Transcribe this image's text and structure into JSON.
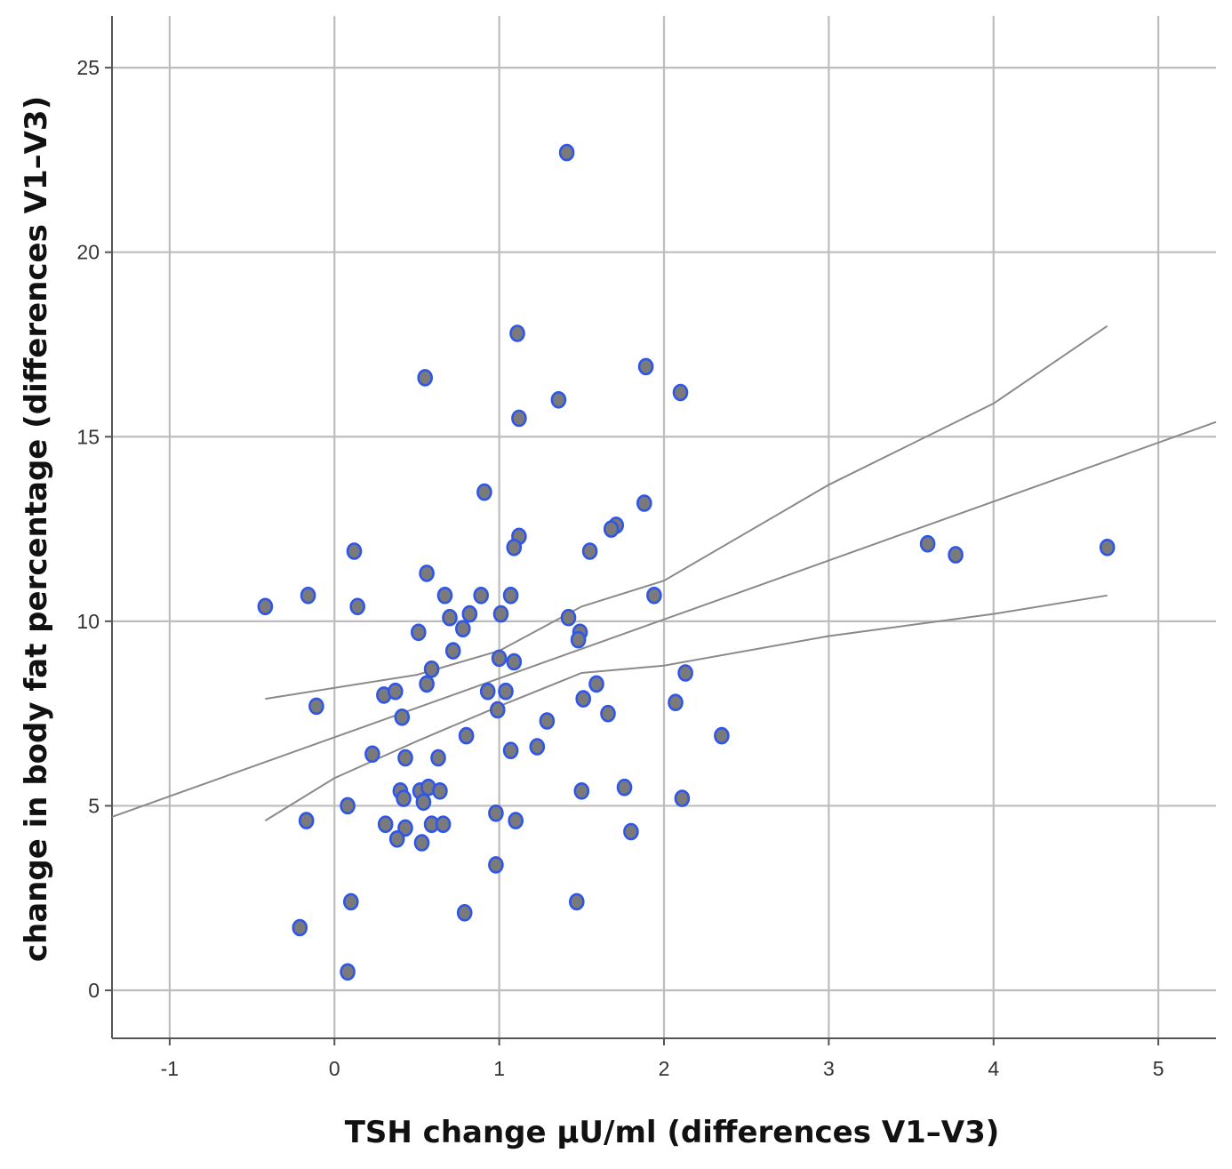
{
  "chart_data": {
    "type": "scatter",
    "title": "",
    "xlabel": "TSH change µU/ml (differences V1–V3)",
    "ylabel": "change in body fat percentage (differences V1–V3)",
    "xlim": [
      -1.35,
      5.35
    ],
    "ylim": [
      -1.3,
      26.4
    ],
    "x_ticks": [
      -1,
      0,
      1,
      2,
      3,
      4,
      5
    ],
    "x_tick_labels": [
      "-1",
      "0",
      "1",
      "2",
      "3",
      "4",
      "5"
    ],
    "y_ticks": [
      0,
      5,
      10,
      15,
      20,
      25
    ],
    "y_tick_labels": [
      "0",
      "5",
      "10",
      "15",
      "20",
      "25"
    ],
    "grid": true,
    "colors": {
      "point_fill": "#7a7a7a",
      "point_edge": "#2f56e8",
      "fit_line": "#8a8a8a",
      "grid": "#bdbdbd"
    },
    "points": [
      {
        "x": 1.41,
        "y": 22.7
      },
      {
        "x": 1.11,
        "y": 17.8
      },
      {
        "x": 0.55,
        "y": 16.6
      },
      {
        "x": 1.89,
        "y": 16.9
      },
      {
        "x": 2.1,
        "y": 16.2
      },
      {
        "x": 1.36,
        "y": 16.0
      },
      {
        "x": 1.12,
        "y": 15.5
      },
      {
        "x": 0.91,
        "y": 13.5
      },
      {
        "x": 1.88,
        "y": 13.2
      },
      {
        "x": 1.71,
        "y": 12.6
      },
      {
        "x": 1.68,
        "y": 12.5
      },
      {
        "x": 1.12,
        "y": 12.3
      },
      {
        "x": 1.09,
        "y": 12.0
      },
      {
        "x": 3.6,
        "y": 12.1
      },
      {
        "x": 3.77,
        "y": 11.8
      },
      {
        "x": 4.69,
        "y": 12.0
      },
      {
        "x": 1.55,
        "y": 11.9
      },
      {
        "x": 0.12,
        "y": 11.9
      },
      {
        "x": 0.56,
        "y": 11.3
      },
      {
        "x": -0.16,
        "y": 10.7
      },
      {
        "x": -0.42,
        "y": 10.4
      },
      {
        "x": 0.14,
        "y": 10.4
      },
      {
        "x": 0.67,
        "y": 10.7
      },
      {
        "x": 0.89,
        "y": 10.7
      },
      {
        "x": 1.07,
        "y": 10.7
      },
      {
        "x": 1.94,
        "y": 10.7
      },
      {
        "x": 0.7,
        "y": 10.1
      },
      {
        "x": 0.82,
        "y": 10.2
      },
      {
        "x": 1.01,
        "y": 10.2
      },
      {
        "x": 1.42,
        "y": 10.1
      },
      {
        "x": 0.78,
        "y": 9.8
      },
      {
        "x": 0.51,
        "y": 9.7
      },
      {
        "x": 1.49,
        "y": 9.7
      },
      {
        "x": 1.48,
        "y": 9.5
      },
      {
        "x": 0.72,
        "y": 9.2
      },
      {
        "x": 1.0,
        "y": 9.0
      },
      {
        "x": 1.09,
        "y": 8.9
      },
      {
        "x": 0.59,
        "y": 8.7
      },
      {
        "x": 2.13,
        "y": 8.6
      },
      {
        "x": 0.56,
        "y": 8.3
      },
      {
        "x": 1.59,
        "y": 8.3
      },
      {
        "x": 0.3,
        "y": 8.0
      },
      {
        "x": 0.37,
        "y": 8.1
      },
      {
        "x": 0.93,
        "y": 8.1
      },
      {
        "x": 1.04,
        "y": 8.1
      },
      {
        "x": 1.51,
        "y": 7.9
      },
      {
        "x": -0.11,
        "y": 7.7
      },
      {
        "x": 2.07,
        "y": 7.8
      },
      {
        "x": 0.99,
        "y": 7.6
      },
      {
        "x": 1.66,
        "y": 7.5
      },
      {
        "x": 0.41,
        "y": 7.4
      },
      {
        "x": 1.29,
        "y": 7.3
      },
      {
        "x": 0.8,
        "y": 6.9
      },
      {
        "x": 2.35,
        "y": 6.9
      },
      {
        "x": 1.23,
        "y": 6.6
      },
      {
        "x": 1.07,
        "y": 6.5
      },
      {
        "x": 0.23,
        "y": 6.4
      },
      {
        "x": 0.43,
        "y": 6.3
      },
      {
        "x": 0.63,
        "y": 6.3
      },
      {
        "x": 1.76,
        "y": 5.5
      },
      {
        "x": 0.4,
        "y": 5.4
      },
      {
        "x": 0.52,
        "y": 5.4
      },
      {
        "x": 0.57,
        "y": 5.5
      },
      {
        "x": 0.64,
        "y": 5.4
      },
      {
        "x": 1.5,
        "y": 5.4
      },
      {
        "x": 0.42,
        "y": 5.2
      },
      {
        "x": 0.54,
        "y": 5.1
      },
      {
        "x": 2.11,
        "y": 5.2
      },
      {
        "x": 0.08,
        "y": 5.0
      },
      {
        "x": 0.98,
        "y": 4.8
      },
      {
        "x": -0.17,
        "y": 4.6
      },
      {
        "x": 1.1,
        "y": 4.6
      },
      {
        "x": 0.31,
        "y": 4.5
      },
      {
        "x": 0.59,
        "y": 4.5
      },
      {
        "x": 0.66,
        "y": 4.5
      },
      {
        "x": 0.43,
        "y": 4.4
      },
      {
        "x": 1.8,
        "y": 4.3
      },
      {
        "x": 0.38,
        "y": 4.1
      },
      {
        "x": 0.53,
        "y": 4.0
      },
      {
        "x": 0.98,
        "y": 3.4
      },
      {
        "x": 0.1,
        "y": 2.4
      },
      {
        "x": 1.47,
        "y": 2.4
      },
      {
        "x": 0.79,
        "y": 2.1
      },
      {
        "x": -0.21,
        "y": 1.7
      },
      {
        "x": 0.08,
        "y": 0.5
      }
    ],
    "fit_line": [
      [
        -1.35,
        4.7
      ],
      [
        5.35,
        15.4
      ]
    ],
    "ci_upper": [
      [
        -0.42,
        7.9
      ],
      [
        0.5,
        8.55
      ],
      [
        1.0,
        9.2
      ],
      [
        1.5,
        10.4
      ],
      [
        2.0,
        11.1
      ],
      [
        3.0,
        13.7
      ],
      [
        4.0,
        15.9
      ],
      [
        4.69,
        18.0
      ]
    ],
    "ci_lower": [
      [
        -0.42,
        4.6
      ],
      [
        0.0,
        5.75
      ],
      [
        0.5,
        6.75
      ],
      [
        1.0,
        7.7
      ],
      [
        1.5,
        8.6
      ],
      [
        2.0,
        8.8
      ],
      [
        3.0,
        9.6
      ],
      [
        4.0,
        10.2
      ],
      [
        4.69,
        10.7
      ]
    ]
  }
}
